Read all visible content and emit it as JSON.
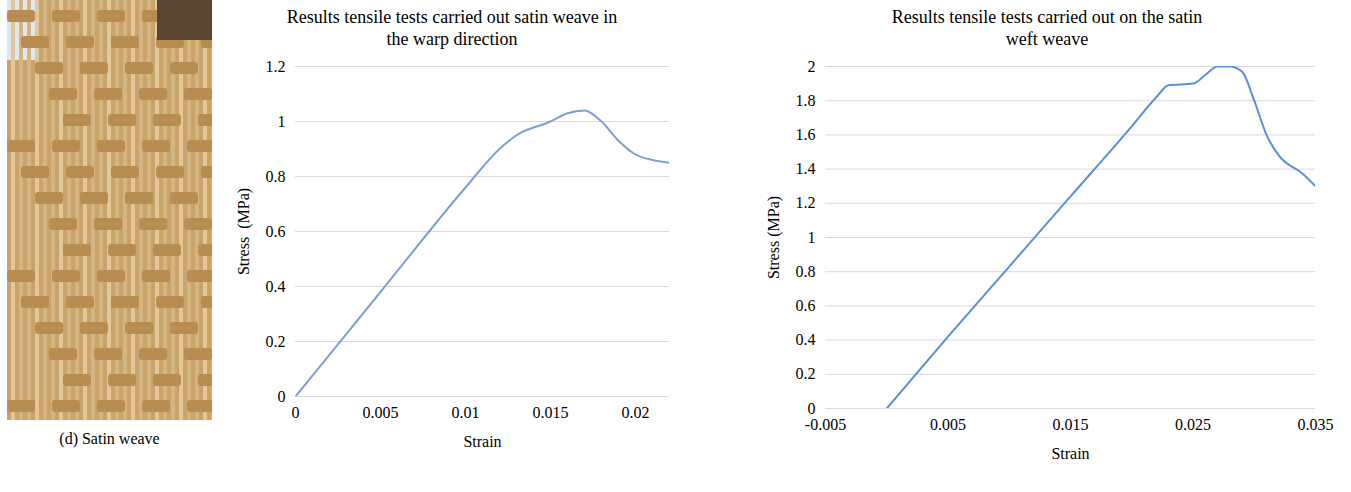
{
  "figure": {
    "caption": "(d) Satin weave"
  },
  "chart_data": [
    {
      "type": "line",
      "title": "Results tensile tests carried out satin weave in the warp direction",
      "x_label": "Strain",
      "y_label": "Stress  (MPa)",
      "x": [
        0,
        0.005,
        0.01,
        0.012,
        0.013,
        0.015,
        0.016,
        0.017,
        0.018,
        0.019,
        0.02,
        0.021,
        0.022
      ],
      "values": [
        0,
        0.38,
        0.76,
        0.9,
        0.95,
        1.0,
        1.03,
        1.04,
        1.0,
        0.93,
        0.88,
        0.86,
        0.85
      ],
      "color": "#7f9fd4",
      "xlim": [
        0,
        0.022
      ],
      "xticks": [
        0,
        0.005,
        0.01,
        0.015,
        0.02
      ],
      "ylim": [
        0,
        1.2
      ],
      "yticks": [
        0,
        0.2,
        0.4,
        0.6,
        0.8,
        1,
        1.2
      ],
      "grid": true
    },
    {
      "type": "line",
      "title": "Results tensile tests carried out on the satin weft weave",
      "x_label": "Strain",
      "y_label": "Stress (MPa)",
      "x": [
        0,
        0.005,
        0.01,
        0.015,
        0.02,
        0.022,
        0.023,
        0.025,
        0.026,
        0.027,
        0.028,
        0.029,
        0.03,
        0.031,
        0.032,
        0.034,
        0.035
      ],
      "values": [
        0,
        0.42,
        0.83,
        1.24,
        1.65,
        1.82,
        1.89,
        1.9,
        1.95,
        2.0,
        2.0,
        1.97,
        1.8,
        1.6,
        1.48,
        1.37,
        1.3
      ],
      "color": "#5b8fd6",
      "xlim": [
        -0.005,
        0.035
      ],
      "xticks": [
        -0.005,
        0.005,
        0.015,
        0.025,
        0.035
      ],
      "ylim": [
        0,
        2
      ],
      "yticks": [
        0,
        0.2,
        0.4,
        0.6,
        0.8,
        1,
        1.2,
        1.4,
        1.6,
        1.8,
        2
      ],
      "grid": true
    }
  ]
}
